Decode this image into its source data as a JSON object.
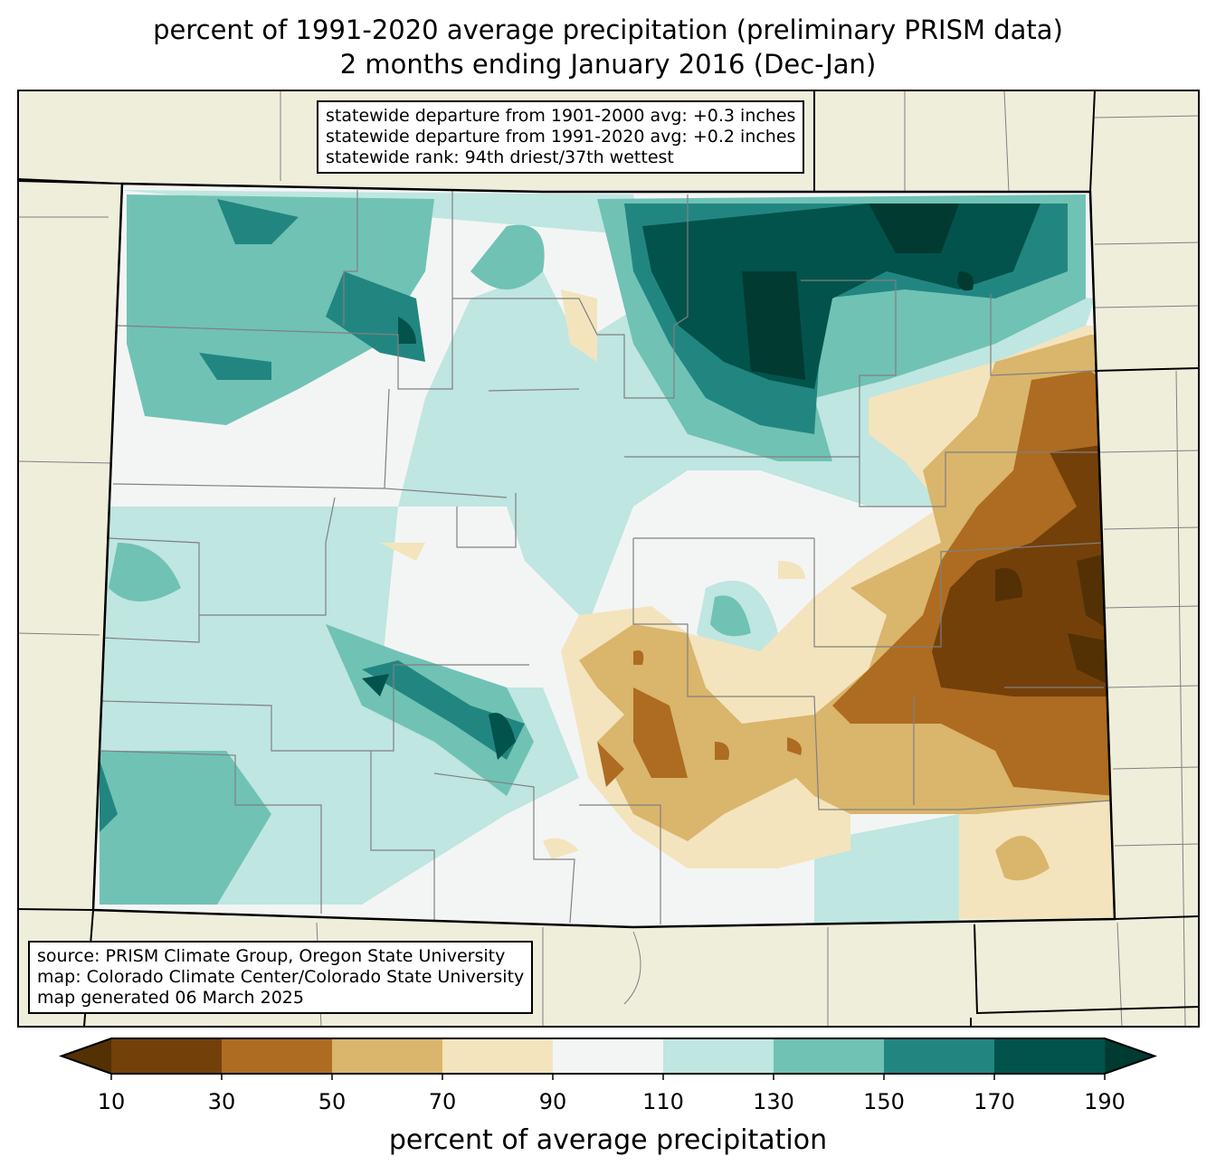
{
  "title": {
    "line1": "percent of 1991-2020 average precipitation (preliminary PRISM data)",
    "line2": "2 months ending January 2016 (Dec-Jan)"
  },
  "stats_box": {
    "line1": "statewide departure from 1901-2000 avg: +0.3 inches",
    "line2": "statewide departure from 1991-2020 avg: +0.2 inches",
    "line3": "statewide rank: 94th driest/37th wettest"
  },
  "source_box": {
    "line1": "source: PRISM Climate Group, Oregon State University",
    "line2": "map: Colorado Climate Center/Colorado State University",
    "line3": "map generated 06 March 2025"
  },
  "colorbar": {
    "label": "percent of average precipitation",
    "ticks": [
      "10",
      "30",
      "50",
      "70",
      "90",
      "110",
      "130",
      "150",
      "170",
      "190"
    ],
    "colors": [
      "#744009",
      "#ad6c21",
      "#dab56c",
      "#f3e4bd",
      "#f3f5f4",
      "#bfe6e1",
      "#70c2b5",
      "#228680",
      "#02534b"
    ],
    "extend_low": "#543005",
    "extend_high": "#003a31"
  },
  "colors": {
    "land": "#efeedb",
    "county_line": "#808080"
  }
}
